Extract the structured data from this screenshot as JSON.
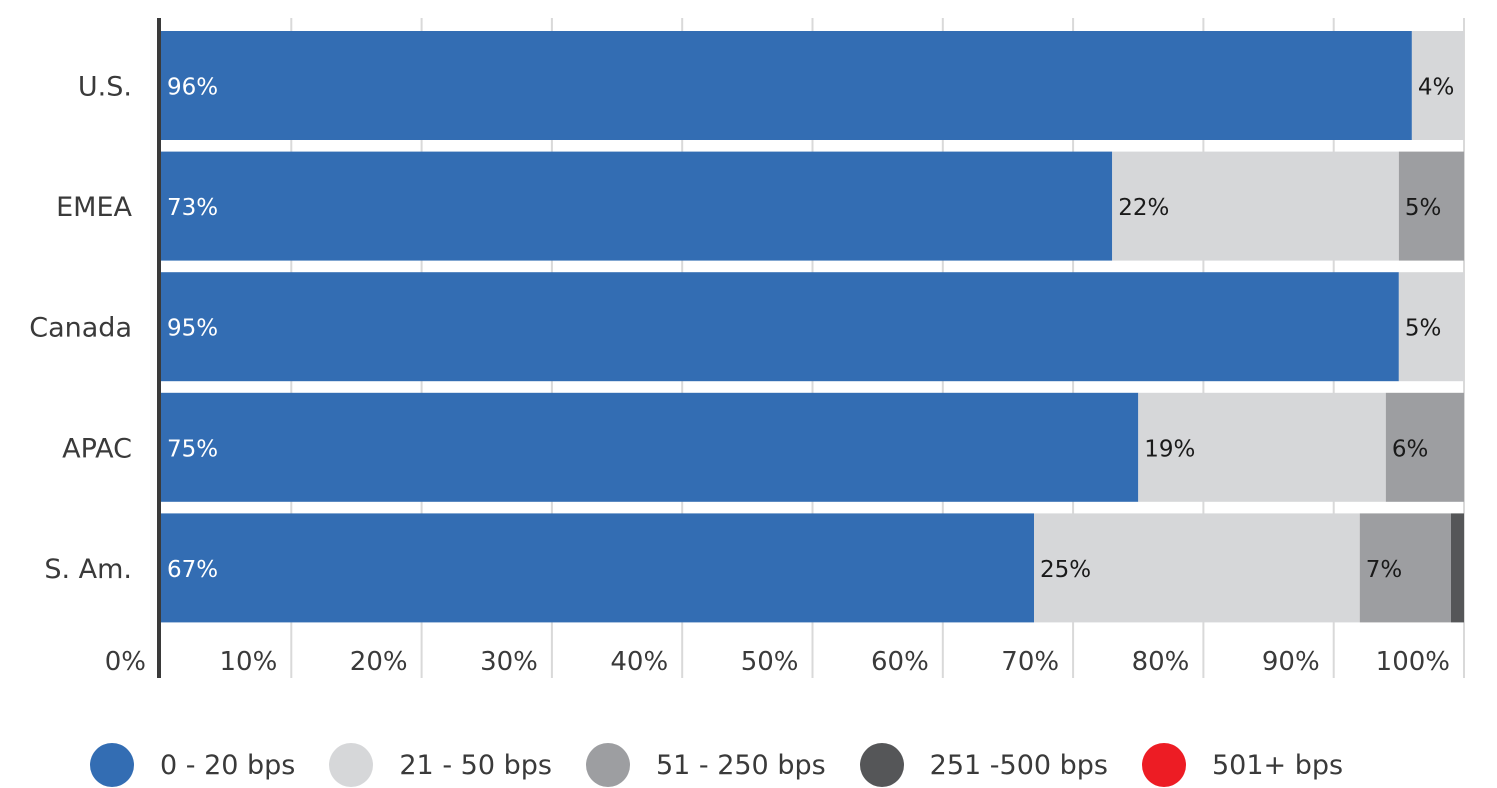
{
  "chart_data": {
    "type": "bar",
    "orientation": "horizontal",
    "stacked": true,
    "categories": [
      "U.S.",
      "EMEA",
      "Canada",
      "APAC",
      "S. Am."
    ],
    "series": [
      {
        "name": "0 - 20 bps",
        "color": "#336db3",
        "values": [
          96,
          73,
          95,
          75,
          67
        ]
      },
      {
        "name": "21 - 50 bps",
        "color": "#d6d7d9",
        "values": [
          4,
          22,
          5,
          19,
          25
        ]
      },
      {
        "name": "51 - 250 bps",
        "color": "#9d9ea1",
        "values": [
          1,
          5,
          0,
          6,
          7
        ]
      },
      {
        "name": "251 -500 bps",
        "color": "#555658",
        "values": [
          0,
          0,
          0,
          0,
          1
        ]
      },
      {
        "name": "501+ bps",
        "color": "#ed1c24",
        "values": [
          0,
          0,
          0,
          0,
          0
        ]
      }
    ],
    "data_labels": [
      [
        "96%",
        "4%",
        "",
        "",
        ""
      ],
      [
        "73%",
        "22%",
        "5%",
        "",
        ""
      ],
      [
        "95%",
        "5%",
        "",
        "",
        ""
      ],
      [
        "75%",
        "19%",
        "6%",
        "",
        ""
      ],
      [
        "67%",
        "25%",
        "7%",
        "",
        ""
      ]
    ],
    "xlim": [
      0,
      100
    ],
    "x_ticks": [
      "0%",
      "10%",
      "20%",
      "30%",
      "40%",
      "50%",
      "60%",
      "70%",
      "80%",
      "90%",
      "100%"
    ],
    "xlabel": "",
    "ylabel": "",
    "title": "",
    "grid": true,
    "legend_position": "bottom"
  }
}
